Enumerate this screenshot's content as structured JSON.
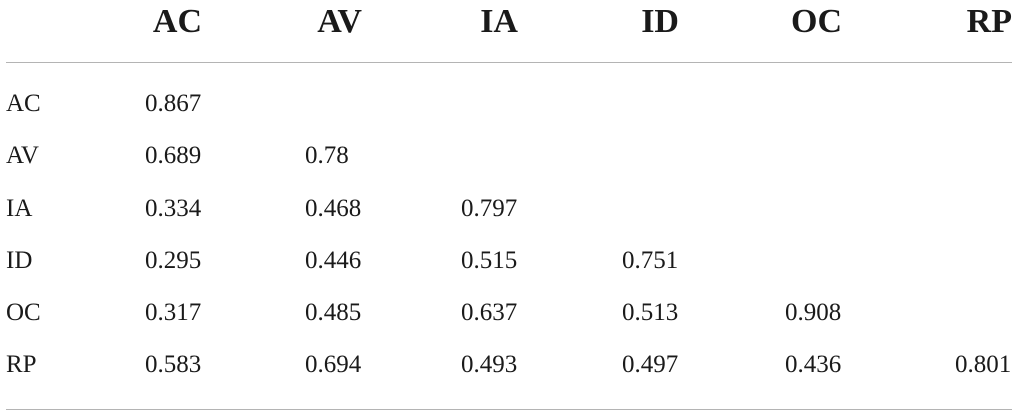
{
  "table": {
    "columns": [
      "AC",
      "AV",
      "IA",
      "ID",
      "OC",
      "RP"
    ],
    "rows": [
      {
        "label": "AC",
        "values": [
          "0.867",
          "",
          "",
          "",
          "",
          ""
        ]
      },
      {
        "label": "AV",
        "values": [
          "0.689",
          "0.78",
          "",
          "",
          "",
          ""
        ]
      },
      {
        "label": "IA",
        "values": [
          "0.334",
          "0.468",
          "0.797",
          "",
          "",
          ""
        ]
      },
      {
        "label": "ID",
        "values": [
          "0.295",
          "0.446",
          "0.515",
          "0.751",
          "",
          ""
        ]
      },
      {
        "label": "OC",
        "values": [
          "0.317",
          "0.485",
          "0.637",
          "0.513",
          "0.908",
          ""
        ]
      },
      {
        "label": "RP",
        "values": [
          "0.583",
          "0.694",
          "0.493",
          "0.497",
          "0.436",
          "0.801"
        ]
      }
    ]
  }
}
